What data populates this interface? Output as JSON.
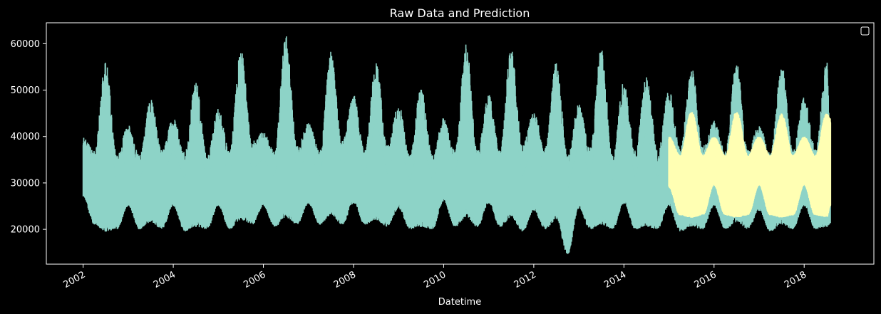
{
  "chart_data": {
    "type": "line",
    "title": "Raw Data and Prediction",
    "xlabel": "Datetime",
    "ylabel": "",
    "xlim": [
      "2001-03-07",
      "2019-07-18"
    ],
    "ylim": [
      12500,
      64500
    ],
    "x_tick_labels": [
      "2002",
      "2004",
      "2006",
      "2008",
      "2010",
      "2012",
      "2014",
      "2016",
      "2018"
    ],
    "y_tick_labels": [
      "20000",
      "30000",
      "40000",
      "50000",
      "60000"
    ],
    "grid": false,
    "legend": {
      "placement": "upper-right",
      "entries": []
    },
    "colors": {
      "background": "#000000",
      "raw": "#8dd3c7",
      "prediction": "#ffffb3",
      "text": "#ffffff"
    },
    "series": [
      {
        "role": "raw",
        "style": "band",
        "x": [
          "2002-01",
          "2002-04",
          "2002-07",
          "2002-10",
          "2003-01",
          "2003-04",
          "2003-07",
          "2003-10",
          "2004-01",
          "2004-04",
          "2004-07",
          "2004-10",
          "2005-01",
          "2005-04",
          "2005-07",
          "2005-10",
          "2006-01",
          "2006-04",
          "2006-07",
          "2006-10",
          "2007-01",
          "2007-04",
          "2007-07",
          "2007-10",
          "2008-01",
          "2008-04",
          "2008-07",
          "2008-10",
          "2009-01",
          "2009-04",
          "2009-07",
          "2009-10",
          "2010-01",
          "2010-04",
          "2010-07",
          "2010-10",
          "2011-01",
          "2011-04",
          "2011-07",
          "2011-10",
          "2012-01",
          "2012-04",
          "2012-07",
          "2012-10",
          "2013-01",
          "2013-04",
          "2013-07",
          "2013-10",
          "2014-01",
          "2014-04",
          "2014-07",
          "2014-10",
          "2015-01",
          "2015-04",
          "2015-07",
          "2015-10",
          "2016-01",
          "2016-04",
          "2016-07",
          "2016-10",
          "2017-01",
          "2017-04",
          "2017-07",
          "2017-10",
          "2018-01",
          "2018-04",
          "2018-07",
          "2018-08"
        ],
        "high": [
          40000,
          37000,
          56000,
          36000,
          42500,
          36000,
          48000,
          37000,
          44000,
          37000,
          52000,
          36000,
          46000,
          37000,
          59000,
          39000,
          41000,
          37000,
          62000,
          38000,
          43000,
          37000,
          58500,
          39000,
          49000,
          37000,
          56000,
          38000,
          47000,
          36000,
          51000,
          36000,
          44000,
          37000,
          60000,
          37000,
          49000,
          37000,
          59500,
          38000,
          45500,
          37500,
          56500,
          36000,
          47000,
          37500,
          59000,
          36000,
          52000,
          37000,
          53000,
          37000,
          50000,
          37500,
          55000,
          38000,
          43500,
          37000,
          56500,
          37000,
          42500,
          36500,
          55500,
          37000,
          48500,
          37500,
          56500,
          41000
        ],
        "low": [
          27000,
          21000,
          19500,
          20000,
          25000,
          20000,
          21500,
          20000,
          25000,
          19500,
          20500,
          20000,
          25000,
          20000,
          22000,
          21000,
          25000,
          20500,
          22500,
          21000,
          25500,
          21000,
          23000,
          21000,
          25500,
          21000,
          22000,
          20500,
          24500,
          20000,
          20500,
          20000,
          26000,
          20500,
          22500,
          20500,
          25500,
          20500,
          22500,
          19500,
          24000,
          20000,
          22000,
          14500,
          24500,
          20000,
          21000,
          20000,
          25500,
          20000,
          20500,
          20000,
          25000,
          19500,
          20500,
          20000,
          25000,
          20000,
          21500,
          20000,
          24000,
          19500,
          21000,
          20000,
          25000,
          20000,
          20500,
          21000
        ]
      },
      {
        "role": "prediction",
        "style": "band",
        "x": [
          "2015-01",
          "2015-04",
          "2015-07",
          "2015-10",
          "2016-01",
          "2016-04",
          "2016-07",
          "2016-10",
          "2017-01",
          "2017-04",
          "2017-07",
          "2017-10",
          "2018-01",
          "2018-04",
          "2018-07",
          "2018-08"
        ],
        "high": [
          40000,
          36000,
          45500,
          36000,
          40000,
          36000,
          45500,
          36000,
          40000,
          36000,
          45000,
          36000,
          40000,
          36000,
          45000,
          44000
        ],
        "low": [
          29000,
          23000,
          22500,
          23000,
          29500,
          23000,
          22500,
          23000,
          29500,
          23000,
          22500,
          23000,
          29500,
          23000,
          22500,
          25000
        ]
      }
    ]
  }
}
